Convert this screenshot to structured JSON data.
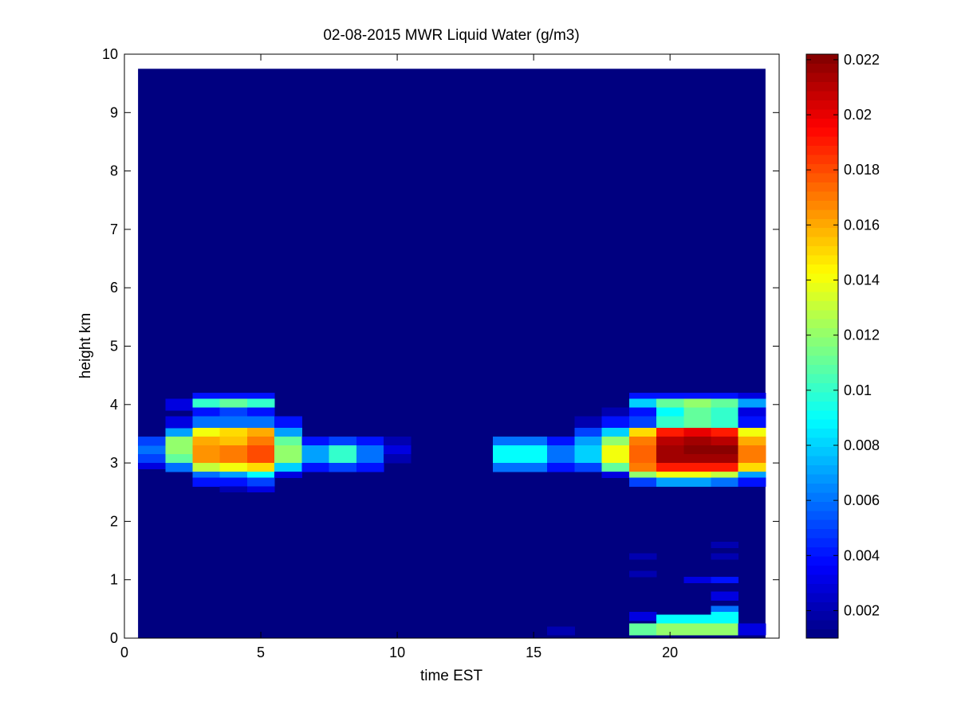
{
  "chart_data": {
    "type": "heatmap",
    "title": "02-08-2015 MWR Liquid Water (g/m3)",
    "xlabel": "time EST",
    "ylabel": "height km",
    "xlim": [
      0,
      24
    ],
    "ylim": [
      0,
      10
    ],
    "x_ticks": [
      0,
      5,
      10,
      15,
      20
    ],
    "y_ticks": [
      0,
      1,
      2,
      3,
      4,
      5,
      6,
      7,
      8,
      9,
      10
    ],
    "colormap": "jet",
    "colorbar": {
      "range": [
        0.001,
        0.0222
      ],
      "ticks": [
        0.002,
        0.004,
        0.006,
        0.008,
        0.01,
        0.012,
        0.014,
        0.016,
        0.018,
        0.02,
        0.022
      ],
      "tick_labels": [
        "0.002",
        "0.004",
        "0.006",
        "0.008",
        "0.01",
        "0.012",
        "0.014",
        "0.016",
        "0.018",
        "0.02",
        "0.022"
      ]
    },
    "time_hours": [
      1,
      2,
      3,
      4,
      5,
      6,
      7,
      8,
      9,
      10,
      11,
      12,
      13,
      14,
      15,
      16,
      17,
      18,
      19,
      20,
      21,
      22,
      23
    ],
    "data_top_km": 9.75,
    "background_value": 0.001,
    "cells": [
      {
        "t": 1,
        "h": [
          3.15,
          3.3
        ],
        "v": 0.006
      },
      {
        "t": 1,
        "h": [
          3.3,
          3.45
        ],
        "v": 0.005
      },
      {
        "t": 1,
        "h": [
          3.0,
          3.15
        ],
        "v": 0.005
      },
      {
        "t": 1,
        "h": [
          2.9,
          3.0
        ],
        "v": 0.003
      },
      {
        "t": 2,
        "h": [
          3.45,
          3.6
        ],
        "v": 0.007
      },
      {
        "t": 2,
        "h": [
          3.3,
          3.45
        ],
        "v": 0.012
      },
      {
        "t": 2,
        "h": [
          3.15,
          3.3
        ],
        "v": 0.012
      },
      {
        "t": 2,
        "h": [
          3.0,
          3.15
        ],
        "v": 0.011
      },
      {
        "t": 2,
        "h": [
          2.85,
          3.0
        ],
        "v": 0.006
      },
      {
        "t": 2,
        "h": [
          3.6,
          3.8
        ],
        "v": 0.003
      },
      {
        "t": 2,
        "h": [
          3.9,
          4.1
        ],
        "v": 0.003
      },
      {
        "t": 3,
        "h": [
          4.1,
          4.2
        ],
        "v": 0.004
      },
      {
        "t": 3,
        "h": [
          3.95,
          4.1
        ],
        "v": 0.01
      },
      {
        "t": 3,
        "h": [
          3.8,
          3.95
        ],
        "v": 0.004
      },
      {
        "t": 3,
        "h": [
          3.6,
          3.8
        ],
        "v": 0.006
      },
      {
        "t": 3,
        "h": [
          3.45,
          3.6
        ],
        "v": 0.014
      },
      {
        "t": 3,
        "h": [
          3.3,
          3.45
        ],
        "v": 0.016
      },
      {
        "t": 3,
        "h": [
          3.15,
          3.3
        ],
        "v": 0.0165
      },
      {
        "t": 3,
        "h": [
          3.0,
          3.15
        ],
        "v": 0.0165
      },
      {
        "t": 3,
        "h": [
          2.85,
          3.0
        ],
        "v": 0.013
      },
      {
        "t": 3,
        "h": [
          2.75,
          2.85
        ],
        "v": 0.006
      },
      {
        "t": 3,
        "h": [
          2.6,
          2.75
        ],
        "v": 0.004
      },
      {
        "t": 4,
        "h": [
          4.1,
          4.2
        ],
        "v": 0.004
      },
      {
        "t": 4,
        "h": [
          3.95,
          4.1
        ],
        "v": 0.011
      },
      {
        "t": 4,
        "h": [
          3.8,
          3.95
        ],
        "v": 0.005
      },
      {
        "t": 4,
        "h": [
          3.6,
          3.8
        ],
        "v": 0.006
      },
      {
        "t": 4,
        "h": [
          3.45,
          3.6
        ],
        "v": 0.015
      },
      {
        "t": 4,
        "h": [
          3.3,
          3.45
        ],
        "v": 0.0155
      },
      {
        "t": 4,
        "h": [
          3.15,
          3.3
        ],
        "v": 0.017
      },
      {
        "t": 4,
        "h": [
          3.0,
          3.15
        ],
        "v": 0.017
      },
      {
        "t": 4,
        "h": [
          2.85,
          3.0
        ],
        "v": 0.014
      },
      {
        "t": 4,
        "h": [
          2.75,
          2.85
        ],
        "v": 0.007
      },
      {
        "t": 4,
        "h": [
          2.6,
          2.75
        ],
        "v": 0.004
      },
      {
        "t": 4,
        "h": [
          2.5,
          2.6
        ],
        "v": 0.002
      },
      {
        "t": 5,
        "h": [
          4.1,
          4.2
        ],
        "v": 0.004
      },
      {
        "t": 5,
        "h": [
          3.95,
          4.1
        ],
        "v": 0.01
      },
      {
        "t": 5,
        "h": [
          3.8,
          3.95
        ],
        "v": 0.004
      },
      {
        "t": 5,
        "h": [
          3.6,
          3.8
        ],
        "v": 0.006
      },
      {
        "t": 5,
        "h": [
          3.45,
          3.6
        ],
        "v": 0.016
      },
      {
        "t": 5,
        "h": [
          3.3,
          3.45
        ],
        "v": 0.017
      },
      {
        "t": 5,
        "h": [
          3.15,
          3.3
        ],
        "v": 0.018
      },
      {
        "t": 5,
        "h": [
          3.0,
          3.15
        ],
        "v": 0.018
      },
      {
        "t": 5,
        "h": [
          2.85,
          3.0
        ],
        "v": 0.015
      },
      {
        "t": 5,
        "h": [
          2.75,
          2.85
        ],
        "v": 0.009
      },
      {
        "t": 5,
        "h": [
          2.6,
          2.75
        ],
        "v": 0.005
      },
      {
        "t": 5,
        "h": [
          2.5,
          2.6
        ],
        "v": 0.003
      },
      {
        "t": 6,
        "h": [
          3.6,
          3.8
        ],
        "v": 0.004
      },
      {
        "t": 6,
        "h": [
          3.45,
          3.6
        ],
        "v": 0.007
      },
      {
        "t": 6,
        "h": [
          3.3,
          3.45
        ],
        "v": 0.011
      },
      {
        "t": 6,
        "h": [
          3.15,
          3.3
        ],
        "v": 0.012
      },
      {
        "t": 6,
        "h": [
          3.0,
          3.15
        ],
        "v": 0.012
      },
      {
        "t": 6,
        "h": [
          2.85,
          3.0
        ],
        "v": 0.008
      },
      {
        "t": 6,
        "h": [
          2.75,
          2.85
        ],
        "v": 0.003
      },
      {
        "t": 7,
        "h": [
          3.3,
          3.45
        ],
        "v": 0.004
      },
      {
        "t": 7,
        "h": [
          3.15,
          3.3
        ],
        "v": 0.007
      },
      {
        "t": 7,
        "h": [
          3.0,
          3.15
        ],
        "v": 0.007
      },
      {
        "t": 7,
        "h": [
          2.85,
          3.0
        ],
        "v": 0.004
      },
      {
        "t": 8,
        "h": [
          3.3,
          3.45
        ],
        "v": 0.005
      },
      {
        "t": 8,
        "h": [
          3.15,
          3.3
        ],
        "v": 0.01
      },
      {
        "t": 8,
        "h": [
          3.0,
          3.15
        ],
        "v": 0.01
      },
      {
        "t": 8,
        "h": [
          2.85,
          3.0
        ],
        "v": 0.005
      },
      {
        "t": 9,
        "h": [
          3.3,
          3.45
        ],
        "v": 0.004
      },
      {
        "t": 9,
        "h": [
          3.15,
          3.3
        ],
        "v": 0.006
      },
      {
        "t": 9,
        "h": [
          3.0,
          3.15
        ],
        "v": 0.006
      },
      {
        "t": 9,
        "h": [
          2.85,
          3.0
        ],
        "v": 0.004
      },
      {
        "t": 10,
        "h": [
          3.3,
          3.45
        ],
        "v": 0.002
      },
      {
        "t": 10,
        "h": [
          3.15,
          3.3
        ],
        "v": 0.003
      },
      {
        "t": 10,
        "h": [
          3.0,
          3.15
        ],
        "v": 0.002
      },
      {
        "t": 14,
        "h": [
          3.3,
          3.45
        ],
        "v": 0.006
      },
      {
        "t": 14,
        "h": [
          3.15,
          3.3
        ],
        "v": 0.009
      },
      {
        "t": 14,
        "h": [
          3.0,
          3.15
        ],
        "v": 0.009
      },
      {
        "t": 14,
        "h": [
          2.85,
          3.0
        ],
        "v": 0.006
      },
      {
        "t": 15,
        "h": [
          3.3,
          3.45
        ],
        "v": 0.006
      },
      {
        "t": 15,
        "h": [
          3.15,
          3.3
        ],
        "v": 0.009
      },
      {
        "t": 15,
        "h": [
          3.0,
          3.15
        ],
        "v": 0.009
      },
      {
        "t": 15,
        "h": [
          2.85,
          3.0
        ],
        "v": 0.006
      },
      {
        "t": 16,
        "h": [
          3.3,
          3.45
        ],
        "v": 0.004
      },
      {
        "t": 16,
        "h": [
          3.15,
          3.3
        ],
        "v": 0.006
      },
      {
        "t": 16,
        "h": [
          3.0,
          3.15
        ],
        "v": 0.006
      },
      {
        "t": 16,
        "h": [
          2.85,
          3.0
        ],
        "v": 0.004
      },
      {
        "t": 16,
        "h": [
          0.05,
          0.2
        ],
        "v": 0.002
      },
      {
        "t": 17,
        "h": [
          3.6,
          3.8
        ],
        "v": 0.002
      },
      {
        "t": 17,
        "h": [
          3.45,
          3.6
        ],
        "v": 0.005
      },
      {
        "t": 17,
        "h": [
          3.3,
          3.45
        ],
        "v": 0.007
      },
      {
        "t": 17,
        "h": [
          3.15,
          3.3
        ],
        "v": 0.008
      },
      {
        "t": 17,
        "h": [
          3.0,
          3.15
        ],
        "v": 0.008
      },
      {
        "t": 17,
        "h": [
          2.85,
          3.0
        ],
        "v": 0.005
      },
      {
        "t": 18,
        "h": [
          3.8,
          3.95
        ],
        "v": 0.002
      },
      {
        "t": 18,
        "h": [
          3.6,
          3.8
        ],
        "v": 0.004
      },
      {
        "t": 18,
        "h": [
          3.45,
          3.6
        ],
        "v": 0.008
      },
      {
        "t": 18,
        "h": [
          3.3,
          3.45
        ],
        "v": 0.012
      },
      {
        "t": 18,
        "h": [
          3.15,
          3.3
        ],
        "v": 0.014
      },
      {
        "t": 18,
        "h": [
          3.0,
          3.15
        ],
        "v": 0.014
      },
      {
        "t": 18,
        "h": [
          2.85,
          3.0
        ],
        "v": 0.011
      },
      {
        "t": 18,
        "h": [
          2.75,
          2.85
        ],
        "v": 0.003
      },
      {
        "t": 19,
        "h": [
          4.1,
          4.2
        ],
        "v": 0.004
      },
      {
        "t": 19,
        "h": [
          3.95,
          4.1
        ],
        "v": 0.008
      },
      {
        "t": 19,
        "h": [
          3.8,
          3.95
        ],
        "v": 0.004
      },
      {
        "t": 19,
        "h": [
          3.6,
          3.8
        ],
        "v": 0.005
      },
      {
        "t": 19,
        "h": [
          3.45,
          3.6
        ],
        "v": 0.015
      },
      {
        "t": 19,
        "h": [
          3.3,
          3.45
        ],
        "v": 0.017
      },
      {
        "t": 19,
        "h": [
          3.15,
          3.3
        ],
        "v": 0.0175
      },
      {
        "t": 19,
        "h": [
          3.0,
          3.15
        ],
        "v": 0.0175
      },
      {
        "t": 19,
        "h": [
          2.85,
          3.0
        ],
        "v": 0.017
      },
      {
        "t": 19,
        "h": [
          2.75,
          2.85
        ],
        "v": 0.012
      },
      {
        "t": 19,
        "h": [
          2.6,
          2.75
        ],
        "v": 0.005
      },
      {
        "t": 19,
        "h": [
          1.35,
          1.45
        ],
        "v": 0.002
      },
      {
        "t": 19,
        "h": [
          1.05,
          1.15
        ],
        "v": 0.002
      },
      {
        "t": 19,
        "h": [
          0.3,
          0.45
        ],
        "v": 0.003
      },
      {
        "t": 19,
        "h": [
          0.05,
          0.25
        ],
        "v": 0.011
      },
      {
        "t": 20,
        "h": [
          4.1,
          4.2
        ],
        "v": 0.004
      },
      {
        "t": 20,
        "h": [
          3.95,
          4.1
        ],
        "v": 0.011
      },
      {
        "t": 20,
        "h": [
          3.8,
          3.95
        ],
        "v": 0.009
      },
      {
        "t": 20,
        "h": [
          3.6,
          3.8
        ],
        "v": 0.01
      },
      {
        "t": 20,
        "h": [
          3.45,
          3.6
        ],
        "v": 0.019
      },
      {
        "t": 20,
        "h": [
          3.3,
          3.45
        ],
        "v": 0.021
      },
      {
        "t": 20,
        "h": [
          3.15,
          3.3
        ],
        "v": 0.0215
      },
      {
        "t": 20,
        "h": [
          3.0,
          3.15
        ],
        "v": 0.0215
      },
      {
        "t": 20,
        "h": [
          2.85,
          3.0
        ],
        "v": 0.019
      },
      {
        "t": 20,
        "h": [
          2.75,
          2.85
        ],
        "v": 0.014
      },
      {
        "t": 20,
        "h": [
          2.6,
          2.75
        ],
        "v": 0.007
      },
      {
        "t": 20,
        "h": [
          0.25,
          0.4
        ],
        "v": 0.009
      },
      {
        "t": 20,
        "h": [
          0.05,
          0.25
        ],
        "v": 0.012
      },
      {
        "t": 21,
        "h": [
          4.1,
          4.2
        ],
        "v": 0.004
      },
      {
        "t": 21,
        "h": [
          3.95,
          4.1
        ],
        "v": 0.012
      },
      {
        "t": 21,
        "h": [
          3.8,
          3.95
        ],
        "v": 0.011
      },
      {
        "t": 21,
        "h": [
          3.6,
          3.8
        ],
        "v": 0.011
      },
      {
        "t": 21,
        "h": [
          3.45,
          3.6
        ],
        "v": 0.02
      },
      {
        "t": 21,
        "h": [
          3.3,
          3.45
        ],
        "v": 0.0215
      },
      {
        "t": 21,
        "h": [
          3.15,
          3.3
        ],
        "v": 0.022
      },
      {
        "t": 21,
        "h": [
          3.0,
          3.15
        ],
        "v": 0.0215
      },
      {
        "t": 21,
        "h": [
          2.85,
          3.0
        ],
        "v": 0.019
      },
      {
        "t": 21,
        "h": [
          2.75,
          2.85
        ],
        "v": 0.014
      },
      {
        "t": 21,
        "h": [
          2.6,
          2.75
        ],
        "v": 0.007
      },
      {
        "t": 21,
        "h": [
          0.95,
          1.05
        ],
        "v": 0.003
      },
      {
        "t": 21,
        "h": [
          0.25,
          0.4
        ],
        "v": 0.009
      },
      {
        "t": 21,
        "h": [
          0.05,
          0.25
        ],
        "v": 0.012
      },
      {
        "t": 22,
        "h": [
          4.1,
          4.2
        ],
        "v": 0.004
      },
      {
        "t": 22,
        "h": [
          3.95,
          4.1
        ],
        "v": 0.011
      },
      {
        "t": 22,
        "h": [
          3.8,
          3.95
        ],
        "v": 0.01
      },
      {
        "t": 22,
        "h": [
          3.6,
          3.8
        ],
        "v": 0.01
      },
      {
        "t": 22,
        "h": [
          3.45,
          3.6
        ],
        "v": 0.019
      },
      {
        "t": 22,
        "h": [
          3.3,
          3.45
        ],
        "v": 0.021
      },
      {
        "t": 22,
        "h": [
          3.15,
          3.3
        ],
        "v": 0.022
      },
      {
        "t": 22,
        "h": [
          3.0,
          3.15
        ],
        "v": 0.0215
      },
      {
        "t": 22,
        "h": [
          2.85,
          3.0
        ],
        "v": 0.019
      },
      {
        "t": 22,
        "h": [
          2.75,
          2.85
        ],
        "v": 0.013
      },
      {
        "t": 22,
        "h": [
          2.6,
          2.75
        ],
        "v": 0.006
      },
      {
        "t": 22,
        "h": [
          1.55,
          1.65
        ],
        "v": 0.002
      },
      {
        "t": 22,
        "h": [
          1.35,
          1.45
        ],
        "v": 0.002
      },
      {
        "t": 22,
        "h": [
          0.95,
          1.05
        ],
        "v": 0.004
      },
      {
        "t": 22,
        "h": [
          0.65,
          0.8
        ],
        "v": 0.003
      },
      {
        "t": 22,
        "h": [
          0.45,
          0.55
        ],
        "v": 0.006
      },
      {
        "t": 22,
        "h": [
          0.25,
          0.45
        ],
        "v": 0.009
      },
      {
        "t": 22,
        "h": [
          0.05,
          0.25
        ],
        "v": 0.012
      },
      {
        "t": 23,
        "h": [
          4.1,
          4.2
        ],
        "v": 0.003
      },
      {
        "t": 23,
        "h": [
          3.95,
          4.1
        ],
        "v": 0.007
      },
      {
        "t": 23,
        "h": [
          3.8,
          3.95
        ],
        "v": 0.003
      },
      {
        "t": 23,
        "h": [
          3.6,
          3.8
        ],
        "v": 0.004
      },
      {
        "t": 23,
        "h": [
          3.45,
          3.6
        ],
        "v": 0.014
      },
      {
        "t": 23,
        "h": [
          3.3,
          3.45
        ],
        "v": 0.016
      },
      {
        "t": 23,
        "h": [
          3.15,
          3.3
        ],
        "v": 0.017
      },
      {
        "t": 23,
        "h": [
          3.0,
          3.15
        ],
        "v": 0.017
      },
      {
        "t": 23,
        "h": [
          2.85,
          3.0
        ],
        "v": 0.015
      },
      {
        "t": 23,
        "h": [
          2.75,
          2.85
        ],
        "v": 0.007
      },
      {
        "t": 23,
        "h": [
          2.6,
          2.75
        ],
        "v": 0.004
      },
      {
        "t": 23,
        "h": [
          0.05,
          0.25
        ],
        "v": 0.003
      }
    ]
  }
}
